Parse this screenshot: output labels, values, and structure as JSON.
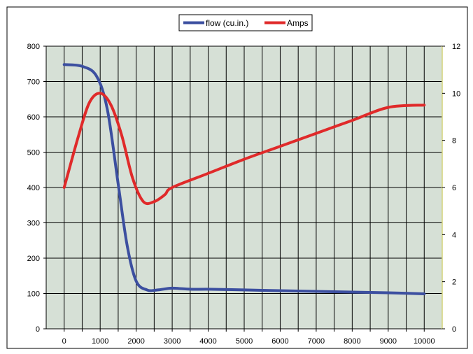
{
  "chart_data": {
    "type": "line",
    "legend": {
      "placement": "top-center"
    },
    "grid": true,
    "plot_background": "#d6e0d6",
    "x": [
      0,
      500,
      1000,
      1500,
      2000,
      2500,
      3000,
      4000,
      5000,
      6000,
      7000,
      8000,
      9000,
      10000
    ],
    "xticks": [
      0,
      1000,
      2000,
      3000,
      4000,
      5000,
      6000,
      7000,
      8000,
      9000,
      10000
    ],
    "xticklabels": [
      "0",
      "1000",
      "2000",
      "3000",
      "4000",
      "5000",
      "6000",
      "7000",
      "8000",
      "9000",
      "10000"
    ],
    "xlim": [
      -500,
      10500
    ],
    "ylim_left": [
      0,
      800
    ],
    "yticks_left": [
      "0",
      "100",
      "200",
      "300",
      "400",
      "500",
      "600",
      "700",
      "800"
    ],
    "ylim_right": [
      0,
      12
    ],
    "yticks_right": [
      "0",
      "2",
      "4",
      "6",
      "8",
      "10",
      "12"
    ],
    "series": [
      {
        "name": "flow (cu.in.)",
        "axis": "left",
        "color": "#3c4fa0",
        "points": [
          [
            0,
            748
          ],
          [
            500,
            743
          ],
          [
            900,
            715
          ],
          [
            1200,
            620
          ],
          [
            1500,
            410
          ],
          [
            1750,
            235
          ],
          [
            2000,
            135
          ],
          [
            2300,
            110
          ],
          [
            2600,
            110
          ],
          [
            3000,
            115
          ],
          [
            3500,
            112
          ],
          [
            4000,
            112
          ],
          [
            5000,
            110
          ],
          [
            6000,
            108
          ],
          [
            7000,
            106
          ],
          [
            8000,
            104
          ],
          [
            9000,
            102
          ],
          [
            10000,
            99
          ]
        ]
      },
      {
        "name": "Amps",
        "axis": "right",
        "color": "#e02a2a",
        "points": [
          [
            0,
            6.0
          ],
          [
            400,
            8.2
          ],
          [
            700,
            9.6
          ],
          [
            1000,
            10.0
          ],
          [
            1300,
            9.5
          ],
          [
            1600,
            8.2
          ],
          [
            1900,
            6.4
          ],
          [
            2200,
            5.4
          ],
          [
            2500,
            5.4
          ],
          [
            2800,
            5.7
          ],
          [
            3000,
            6.0
          ],
          [
            4000,
            6.6
          ],
          [
            5000,
            7.2
          ],
          [
            6000,
            7.75
          ],
          [
            7000,
            8.3
          ],
          [
            8000,
            8.85
          ],
          [
            9000,
            9.4
          ],
          [
            10000,
            9.5
          ]
        ]
      }
    ]
  }
}
